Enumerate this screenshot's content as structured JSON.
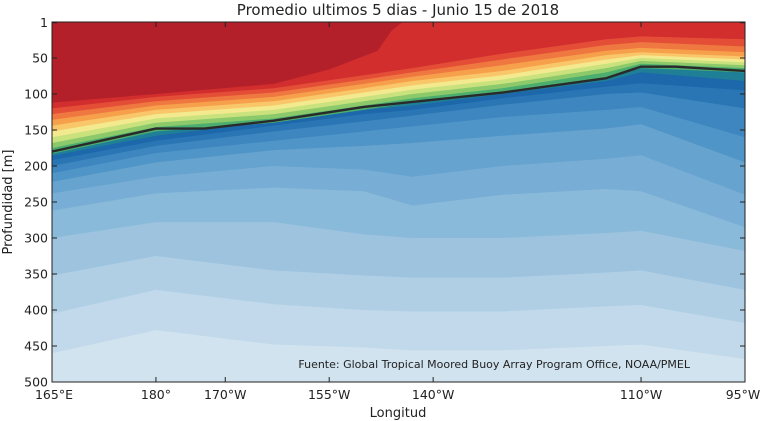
{
  "chart_data": {
    "type": "heatmap",
    "title": "Promedio ultimos 5 dias - Junio 15 de 2018",
    "xlabel": "Longitud",
    "ylabel": "Profundidad [m]",
    "source_note": "Fuente: Global Tropical Moored Buoy Array Program Office, NOAA/PMEL",
    "x_tick_labels": [
      "165°E",
      "180°",
      "170°W",
      "155°W",
      "140°W",
      "110°W",
      "95°W"
    ],
    "x_tick_values": [
      165,
      180,
      190,
      205,
      220,
      250,
      265
    ],
    "xlim": [
      165,
      265
    ],
    "y_tick_labels": [
      "1",
      "50",
      "100",
      "150",
      "200",
      "250",
      "300",
      "350",
      "400",
      "450",
      "500"
    ],
    "y_tick_values": [
      1,
      50,
      100,
      150,
      200,
      250,
      300,
      350,
      400,
      450,
      500
    ],
    "ylim": [
      0,
      500
    ],
    "y_reversed": true,
    "grid": false,
    "colormap": "diverging red-yellow-green-blue (warm surface, cold depth)",
    "isotherm_line": {
      "color": "#2a2a2a",
      "longitude": [
        165,
        180,
        187,
        197,
        210,
        230,
        245,
        250,
        255,
        265
      ],
      "depth": [
        180,
        148,
        148,
        137,
        118,
        98,
        78,
        62,
        62,
        68
      ]
    }
  }
}
